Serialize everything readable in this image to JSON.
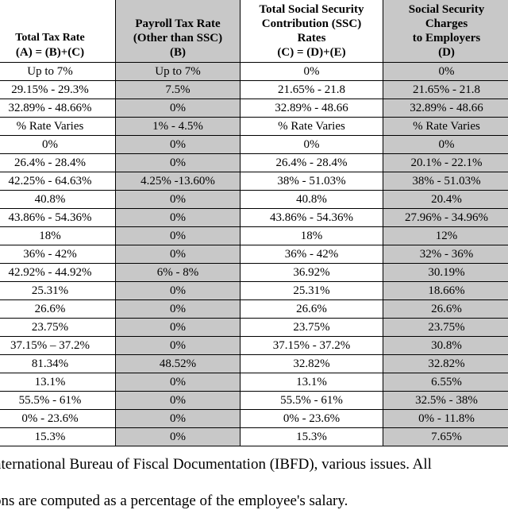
{
  "headers": [
    {
      "lines": [
        "Total Tax Rate",
        "(A) = (B)+(C)"
      ],
      "shaded": false
    },
    {
      "lines": [
        "Payroll Tax Rate",
        "(Other than SSC)",
        "(B)"
      ],
      "shaded": true
    },
    {
      "lines": [
        "Total Social Security",
        "Contribution (SSC)",
        "Rates",
        "(C) = (D)+(E)"
      ],
      "shaded": false
    },
    {
      "lines": [
        "Social Security",
        "Charges",
        "to Employers",
        "(D)"
      ],
      "shaded": true
    }
  ],
  "rows": [
    [
      "Up to 7%",
      "Up to 7%",
      "0%",
      "0%"
    ],
    [
      "29.15% - 29.3%",
      "7.5%",
      "21.65% - 21.8",
      "21.65% - 21.8"
    ],
    [
      "32.89% - 48.66%",
      "0%",
      "32.89% - 48.66",
      "32.89% - 48.66"
    ],
    [
      "% Rate Varies",
      "1% - 4.5%",
      "% Rate Varies",
      "% Rate Varies"
    ],
    [
      "0%",
      "0%",
      "0%",
      "0%"
    ],
    [
      "26.4% - 28.4%",
      "0%",
      "26.4% - 28.4%",
      "20.1% - 22.1%"
    ],
    [
      "42.25% - 64.63%",
      "4.25% -13.60%",
      "38% - 51.03%",
      "38% - 51.03%"
    ],
    [
      "40.8%",
      "0%",
      "40.8%",
      "20.4%"
    ],
    [
      "43.86% - 54.36%",
      "0%",
      "43.86% - 54.36%",
      "27.96% - 34.96%"
    ],
    [
      "18%",
      "0%",
      "18%",
      "12%"
    ],
    [
      "36% - 42%",
      "0%",
      "36% - 42%",
      "32% - 36%"
    ],
    [
      "42.92% - 44.92%",
      "6% - 8%",
      "36.92%",
      "30.19%"
    ],
    [
      "25.31%",
      "0%",
      "25.31%",
      "18.66%"
    ],
    [
      "26.6%",
      "0%",
      "26.6%",
      "26.6%"
    ],
    [
      "23.75%",
      "0%",
      "23.75%",
      "23.75%"
    ],
    [
      "37.15% – 37.2%",
      "0%",
      "37.15% - 37.2%",
      "30.8%"
    ],
    [
      "81.34%",
      "48.52%",
      "32.82%",
      "32.82%"
    ],
    [
      "13.1%",
      "0%",
      "13.1%",
      "6.55%"
    ],
    [
      "55.5% - 61%",
      "0%",
      "55.5% - 61%",
      "32.5% - 38%"
    ],
    [
      "0% - 23.6%",
      "0%",
      "0% - 23.6%",
      "0% - 11.8%"
    ],
    [
      "15.3%",
      "0%",
      "15.3%",
      "7.65%"
    ]
  ],
  "footnotes": [
    "nternational Bureau of Fiscal Documentation (IBFD), various issues.  All",
    "ons are computed as a percentage of the employee's salary."
  ]
}
